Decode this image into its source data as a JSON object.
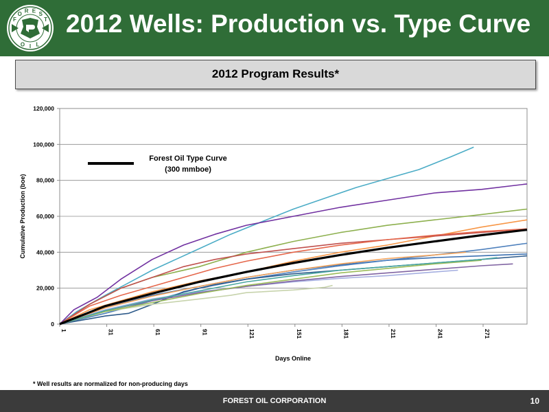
{
  "header": {
    "title": "2012 Wells: Production vs. Type Curve"
  },
  "logo": {
    "letters_top": [
      "F",
      "O",
      "R",
      "E",
      "S",
      "T"
    ],
    "letters_bottom": [
      "O",
      "I",
      "L"
    ],
    "colors": {
      "ring": "#2f6d37",
      "keystone": "#2f6d37",
      "arrows": "#ffffff"
    }
  },
  "program_box": {
    "label": "2012 Program Results*"
  },
  "footnote": "* Well results are normalized for non-producing days",
  "footer": {
    "company": "FOREST OIL CORPORATION",
    "page_number": "10"
  },
  "chart_data": {
    "type": "line",
    "xlabel": "Days Online",
    "ylabel": "Cumulative Production (boe)",
    "xlim": [
      1,
      299
    ],
    "ylim": [
      0,
      120000
    ],
    "x_ticks": [
      1,
      31,
      61,
      91,
      121,
      151,
      181,
      211,
      241,
      271
    ],
    "y_ticks": [
      0,
      20000,
      40000,
      60000,
      80000,
      100000,
      120000
    ],
    "y_tick_labels": [
      "0",
      "20,000",
      "40,000",
      "60,000",
      "80,000",
      "100,000",
      "120,000"
    ],
    "grid": "horizontal",
    "legend": {
      "label_line1": "Forest Oil Type Curve",
      "label_line2": "(300 mmboe)",
      "placement": "upper-left"
    },
    "type_curve": {
      "color": "#000000",
      "x": [
        1,
        30,
        60,
        90,
        120,
        150,
        180,
        210,
        240,
        270,
        299
      ],
      "y": [
        0,
        10000,
        17000,
        23500,
        29000,
        34000,
        38500,
        42500,
        46000,
        49500,
        52500
      ]
    },
    "series": [
      {
        "color": "#4bacc6",
        "x": [
          1,
          12,
          30,
          45,
          60,
          75,
          90,
          110,
          130,
          150,
          170,
          190,
          210,
          230,
          250,
          265
        ],
        "y": [
          0,
          7000,
          16000,
          23000,
          30000,
          36000,
          42000,
          50000,
          57000,
          64000,
          70000,
          76000,
          81000,
          86000,
          93000,
          98500
        ]
      },
      {
        "color": "#7030a0",
        "x": [
          1,
          10,
          25,
          40,
          60,
          80,
          100,
          120,
          150,
          180,
          210,
          240,
          270,
          299
        ],
        "y": [
          0,
          8000,
          15000,
          25000,
          36000,
          44000,
          50000,
          55000,
          60000,
          65000,
          69000,
          73000,
          75000,
          78000
        ]
      },
      {
        "color": "#8db04e",
        "x": [
          1,
          20,
          40,
          60,
          90,
          120,
          150,
          180,
          210,
          240,
          270,
          299
        ],
        "y": [
          0,
          11000,
          20000,
          26000,
          32000,
          40000,
          46000,
          51000,
          55000,
          58000,
          61000,
          64000
        ]
      },
      {
        "color": "#f79646",
        "x": [
          1,
          20,
          40,
          60,
          90,
          120,
          150,
          180,
          210,
          240,
          270,
          299
        ],
        "y": [
          0,
          8000,
          13000,
          18000,
          24000,
          29000,
          35000,
          40000,
          44000,
          49000,
          54000,
          58000
        ]
      },
      {
        "color": "#c0504d",
        "x": [
          1,
          20,
          40,
          60,
          80,
          100,
          120,
          150,
          180,
          210,
          240,
          270,
          299
        ],
        "y": [
          0,
          11000,
          20000,
          26000,
          32000,
          36000,
          39000,
          42000,
          45000,
          47000,
          49000,
          51000,
          53000
        ]
      },
      {
        "color": "#e5664a",
        "x": [
          1,
          20,
          40,
          60,
          80,
          100,
          120,
          150,
          180,
          210,
          240,
          270,
          299
        ],
        "y": [
          0,
          10000,
          16000,
          21000,
          26000,
          31000,
          35000,
          40000,
          44000,
          47000,
          49500,
          51500,
          53000
        ]
      },
      {
        "color": "#3a6fb0",
        "x": [
          1,
          30,
          60,
          90,
          120,
          150,
          180,
          210,
          240,
          270,
          299
        ],
        "y": [
          0,
          9000,
          16000,
          21000,
          26000,
          30000,
          33000,
          35500,
          37000,
          38000,
          39000
        ]
      },
      {
        "color": "#4f81bd",
        "x": [
          1,
          30,
          60,
          90,
          120,
          150,
          180,
          210,
          240,
          270,
          299
        ],
        "y": [
          0,
          6000,
          13000,
          20000,
          25000,
          29000,
          32500,
          35500,
          38500,
          41500,
          45000
        ]
      },
      {
        "color": "#2d5a8a",
        "x": [
          1,
          30,
          45,
          60,
          80,
          100,
          120,
          150,
          180,
          210,
          240,
          270,
          299
        ],
        "y": [
          0,
          4500,
          6000,
          11000,
          18000,
          22000,
          25000,
          28000,
          30000,
          32000,
          34000,
          36000,
          38000
        ]
      },
      {
        "color": "#c7d3ac",
        "x": [
          1,
          30,
          60,
          90,
          110,
          120,
          150,
          170,
          175
        ],
        "y": [
          0,
          7000,
          11000,
          14000,
          16000,
          17500,
          19000,
          20500,
          21500
        ]
      },
      {
        "color": "#a4aee0",
        "x": [
          1,
          30,
          60,
          90,
          120,
          150,
          180,
          210,
          240,
          255
        ],
        "y": [
          0,
          8000,
          14000,
          18000,
          21000,
          23500,
          25500,
          27000,
          29000,
          30000
        ]
      },
      {
        "color": "#8064a2",
        "x": [
          1,
          30,
          60,
          90,
          120,
          150,
          180,
          210,
          240,
          270,
          290
        ],
        "y": [
          0,
          7500,
          13000,
          17500,
          21000,
          24000,
          26500,
          28500,
          30500,
          32500,
          33500
        ]
      },
      {
        "color": "#9bbb59",
        "x": [
          1,
          30,
          60,
          90,
          120,
          150,
          180,
          210,
          240,
          270
        ],
        "y": [
          0,
          7000,
          12000,
          17000,
          21500,
          25000,
          28500,
          31000,
          33500,
          35500
        ]
      },
      {
        "color": "#4aa7a0",
        "x": [
          1,
          30,
          60,
          90,
          120,
          150,
          180,
          210,
          240,
          270,
          280
        ],
        "y": [
          0,
          7500,
          13500,
          18500,
          23500,
          27000,
          30000,
          32000,
          34000,
          36000,
          37000
        ]
      },
      {
        "color": "#f4a35a",
        "x": [
          1,
          30,
          60,
          90,
          120,
          150,
          180,
          210,
          240,
          260
        ],
        "y": [
          0,
          9000,
          15500,
          21000,
          26000,
          30000,
          33500,
          36500,
          38500,
          40000
        ]
      }
    ]
  }
}
